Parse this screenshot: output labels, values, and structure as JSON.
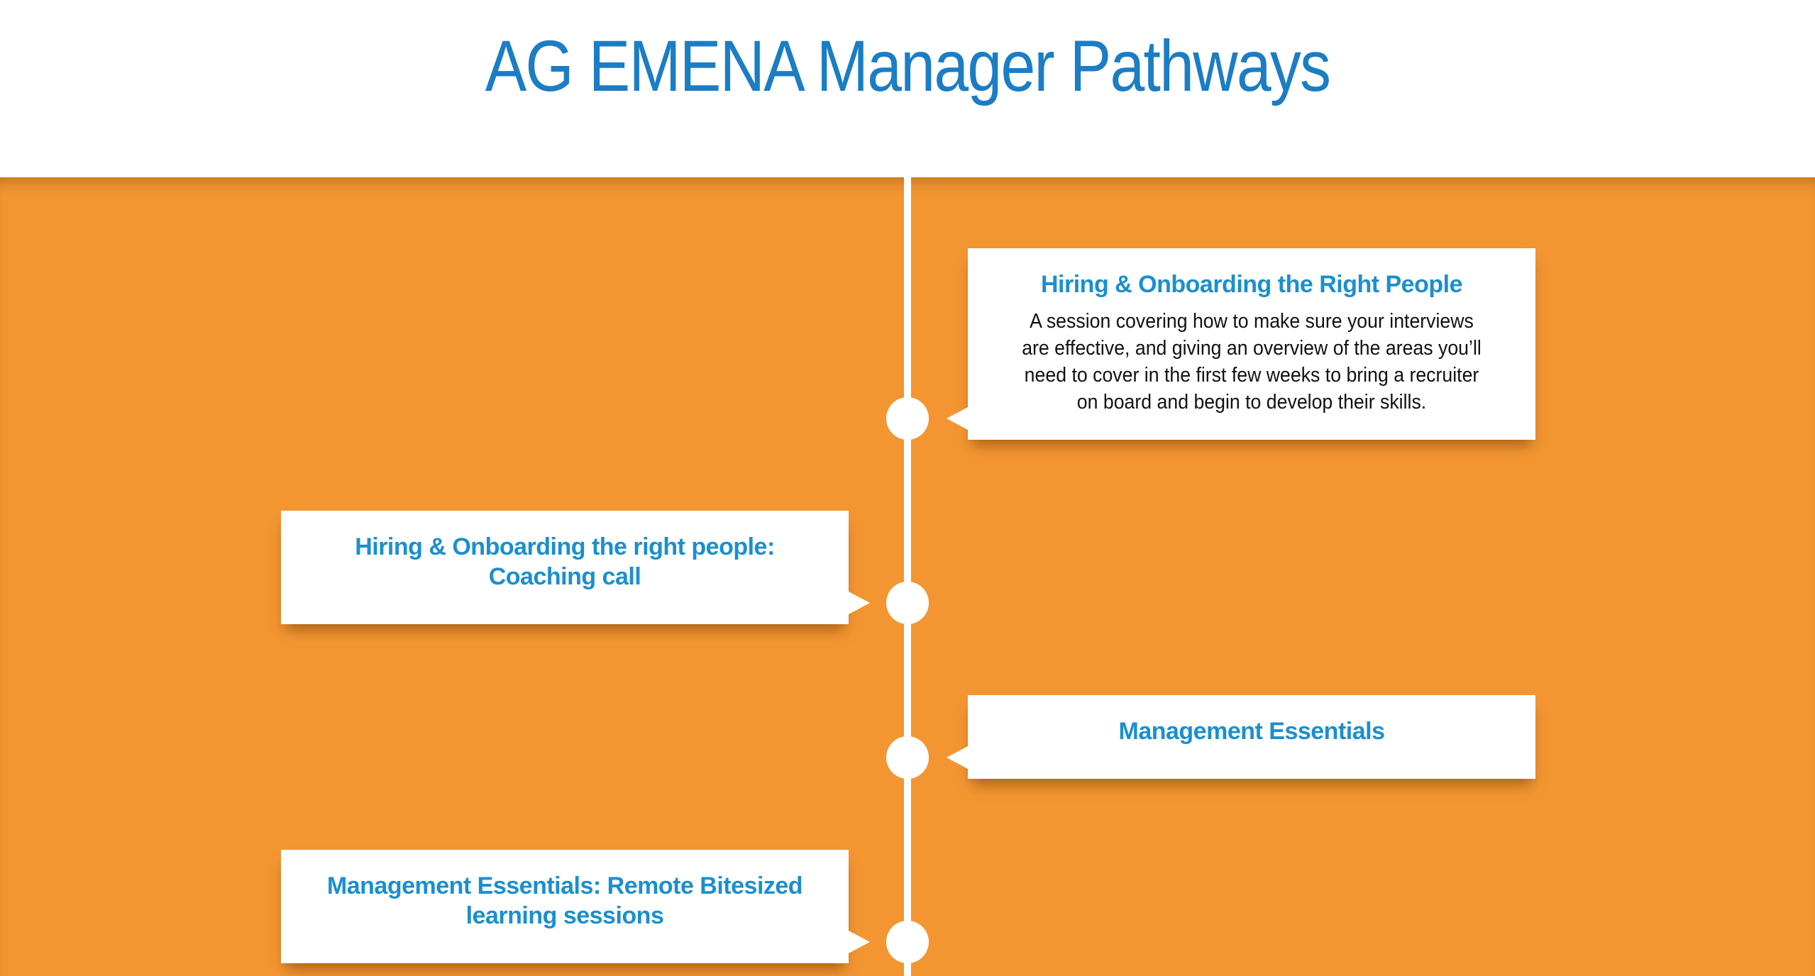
{
  "page": {
    "title": "AG EMENA Manager Pathways"
  },
  "colors": {
    "title": "#1b7dc4",
    "band": "#f39632",
    "card_title": "#1b8fce",
    "card_text": "#111111"
  },
  "timeline": {
    "items": [
      {
        "title": "Hiring & Onboarding the Right People",
        "description": "A session covering how to make sure your interviews are effective, and giving an overview of the areas you’ll need to cover in the first few weeks to bring a recruiter on board and begin to develop their skills.",
        "side": "right"
      },
      {
        "title": "Hiring & Onboarding the right people: Coaching call",
        "description": "",
        "side": "left"
      },
      {
        "title": "Management Essentials",
        "description": "",
        "side": "right"
      },
      {
        "title": "Management Essentials: Remote Bitesized learning sessions",
        "description": "",
        "side": "left"
      }
    ]
  }
}
